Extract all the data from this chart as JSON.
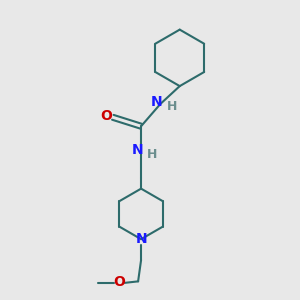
{
  "bg_color": "#e8e8e8",
  "bond_color": "#2d6b6b",
  "N_color": "#1a1aff",
  "O_color": "#cc0000",
  "H_color": "#6b8e8e",
  "line_width": 1.5,
  "font_size": 10,
  "fig_size": [
    3.0,
    3.0
  ],
  "dpi": 100,
  "xlim": [
    0,
    10
  ],
  "ylim": [
    0,
    10
  ]
}
